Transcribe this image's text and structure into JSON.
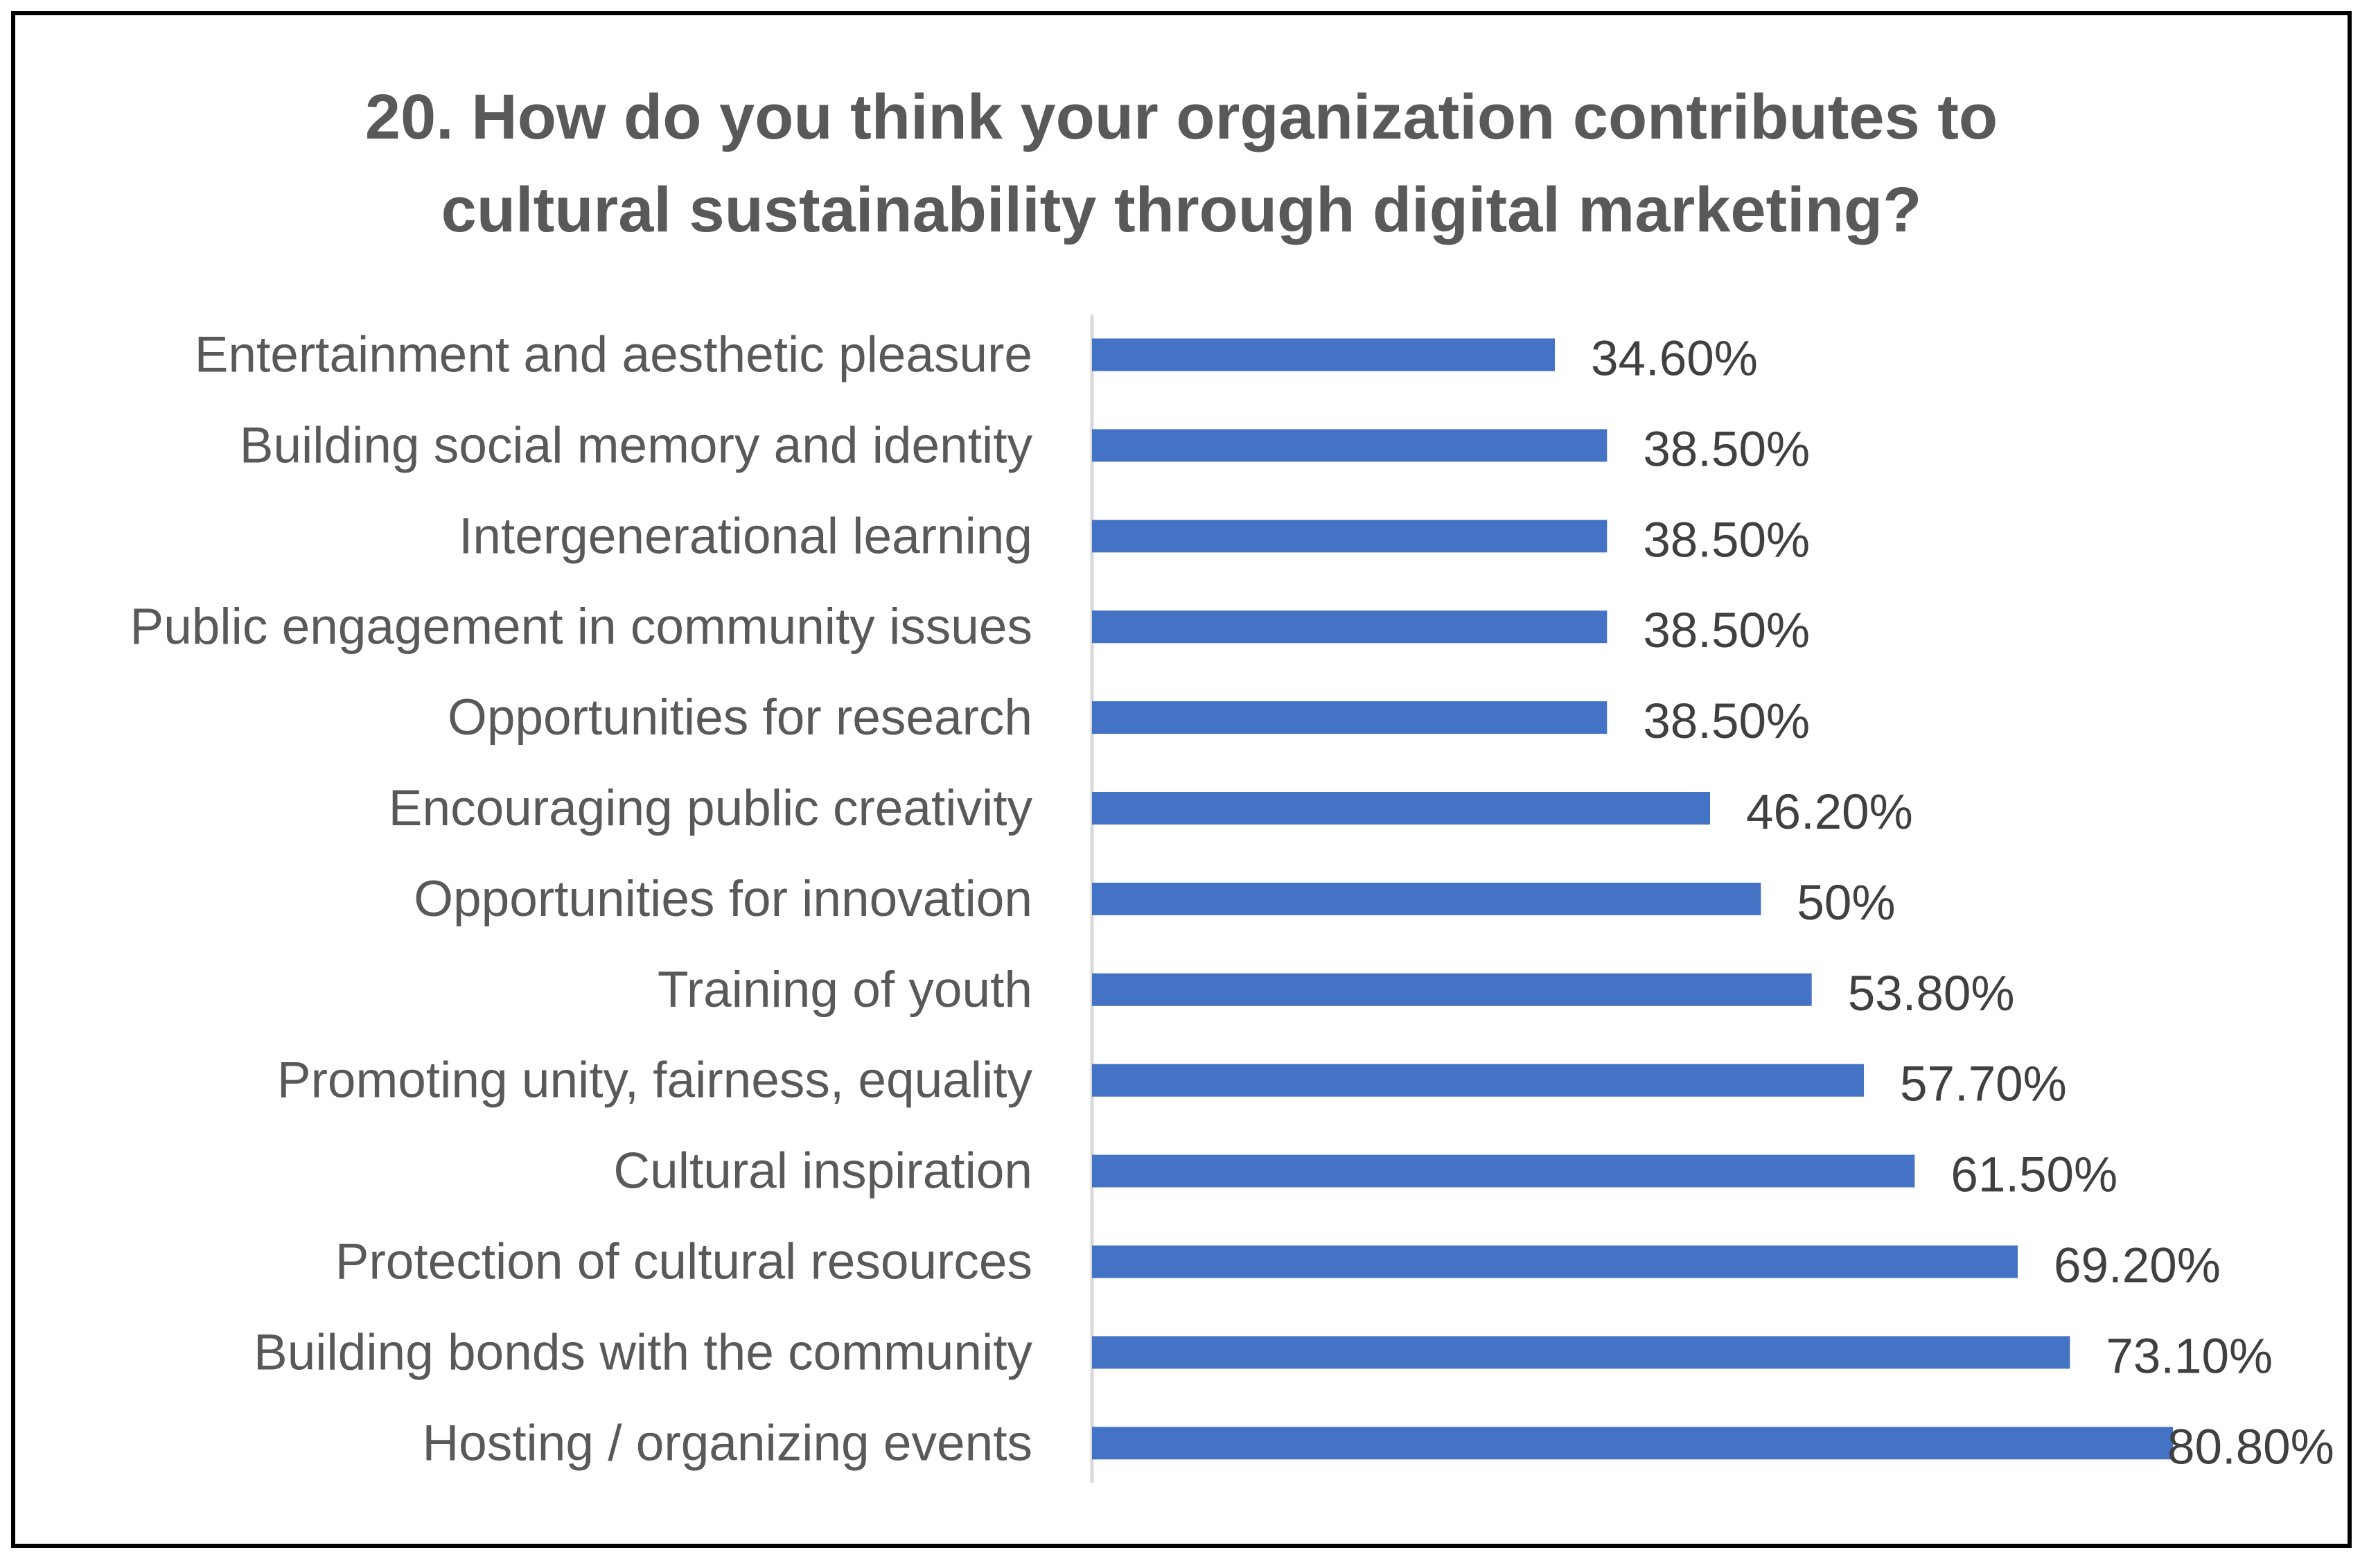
{
  "chart_data": {
    "type": "bar",
    "orientation": "horizontal",
    "title": "20. How do you think your organization contributes to cultural sustainability through digital marketing?",
    "title_lines": [
      "20. How do you think your organization contributes to",
      "cultural sustainability through digital marketing?"
    ],
    "categories": [
      "Entertainment and aesthetic pleasure",
      "Building social memory and identity",
      "Intergenerational learning",
      "Public engagement in community issues",
      "Opportunities for research",
      "Encouraging public creativity",
      "Opportunities for innovation",
      "Training of youth",
      "Promoting unity, fairness, equality",
      "Cultural inspiration",
      "Protection of cultural resources",
      "Building bonds with the community",
      "Hosting / organizing events"
    ],
    "values": [
      34.6,
      38.5,
      38.5,
      38.5,
      38.5,
      46.2,
      50,
      53.8,
      57.7,
      61.5,
      69.2,
      73.1,
      80.8
    ],
    "value_labels": [
      "34.60%",
      "38.50%",
      "38.50%",
      "38.50%",
      "38.50%",
      "46.20%",
      "50%",
      "53.80%",
      "57.70%",
      "61.50%",
      "69.20%",
      "73.10%",
      "80.80%"
    ],
    "xlim": [
      0,
      80.8
    ],
    "xlabel": "",
    "ylabel": "",
    "grid": false,
    "legend": "none",
    "colors": {
      "bar": "#4472C4",
      "axis": "#D9D9D9",
      "title": "#595959",
      "category_text": "#595959",
      "value_text": "#404040",
      "border": "#000000"
    }
  }
}
